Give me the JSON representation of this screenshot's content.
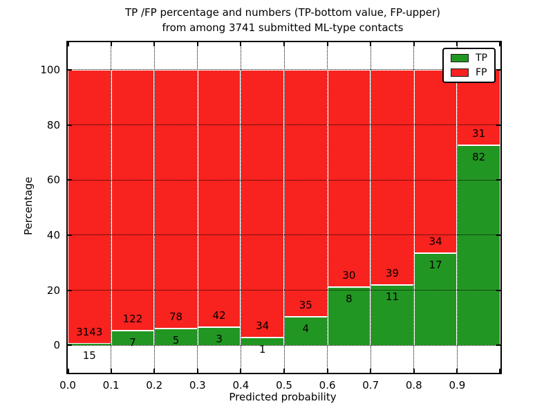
{
  "title": {
    "line1": "TP /FP percentage and numbers (TP-bottom value, FP-upper)",
    "line2": "from among 3741 submitted ML-type contacts"
  },
  "axes": {
    "xlabel": "Predicted probability",
    "ylabel": "Percentage",
    "xtick_labels": [
      "0.0",
      "0.1",
      "0.2",
      "0.3",
      "0.4",
      "0.5",
      "0.6",
      "0.7",
      "0.8",
      "0.9"
    ],
    "ytick_values": [
      0,
      20,
      40,
      60,
      80,
      100
    ]
  },
  "legend": {
    "position": "upper right",
    "items": [
      {
        "label": "TP",
        "color": "#229622"
      },
      {
        "label": "FP",
        "color": "#f8221e"
      }
    ]
  },
  "chart_data": {
    "type": "bar",
    "stacked": true,
    "normalized_to_percent": true,
    "title": "TP /FP percentage and numbers (TP-bottom value, FP-upper) from among 3741 submitted ML-type contacts",
    "xlabel": "Predicted probability",
    "ylabel": "Percentage",
    "xlim": [
      0.0,
      1.0
    ],
    "ylim": [
      -10,
      110
    ],
    "grid": true,
    "bin_width": 0.1,
    "bin_starts": [
      0.0,
      0.1,
      0.2,
      0.3,
      0.4,
      0.5,
      0.6,
      0.7,
      0.8,
      0.9
    ],
    "series": [
      {
        "name": "TP",
        "color": "#229622",
        "values": [
          15,
          7,
          5,
          3,
          1,
          4,
          8,
          11,
          17,
          82
        ]
      },
      {
        "name": "FP",
        "color": "#f8221e",
        "values": [
          3143,
          122,
          78,
          42,
          34,
          35,
          30,
          39,
          34,
          31
        ]
      }
    ],
    "tp_percent_of_bin": [
      0.5,
      5.4,
      6.0,
      6.7,
      2.9,
      10.3,
      21.1,
      22.0,
      33.3,
      72.6
    ],
    "total_contacts": 3741,
    "bar_count_labels_shown": true,
    "edge_color": "#ffffff"
  }
}
